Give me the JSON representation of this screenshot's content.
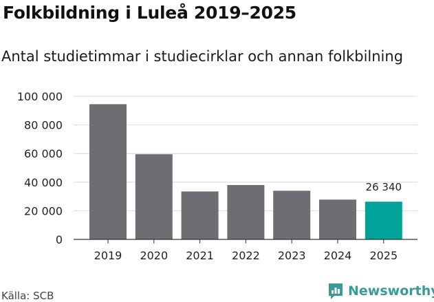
{
  "chart_data": {
    "type": "bar",
    "title": "Folkbildning i Luleå 2019–2025",
    "subtitle": "Antal studietimmar i studiecirklar och annan folkbilning",
    "categories": [
      "2019",
      "2020",
      "2021",
      "2022",
      "2023",
      "2024",
      "2025"
    ],
    "values": [
      94500,
      59500,
      33500,
      38000,
      34000,
      27800,
      26340
    ],
    "ylim": [
      0,
      100000
    ],
    "yticks": [
      0,
      20000,
      40000,
      60000,
      80000,
      100000
    ],
    "ytick_labels": [
      "0",
      "20 000",
      "40 000",
      "60 000",
      "80 000",
      "100 000"
    ],
    "data_labels": [
      null,
      null,
      null,
      null,
      null,
      null,
      "26 340"
    ],
    "grid": "horizontal",
    "bar_color": "#6e6d71",
    "highlight_color": "#00a398",
    "highlight_index": 6
  },
  "source": "Källa: SCB",
  "brand": {
    "name": "Newsworthy",
    "icon": "newsworthy-logo-icon",
    "color": "#3a9a98"
  }
}
